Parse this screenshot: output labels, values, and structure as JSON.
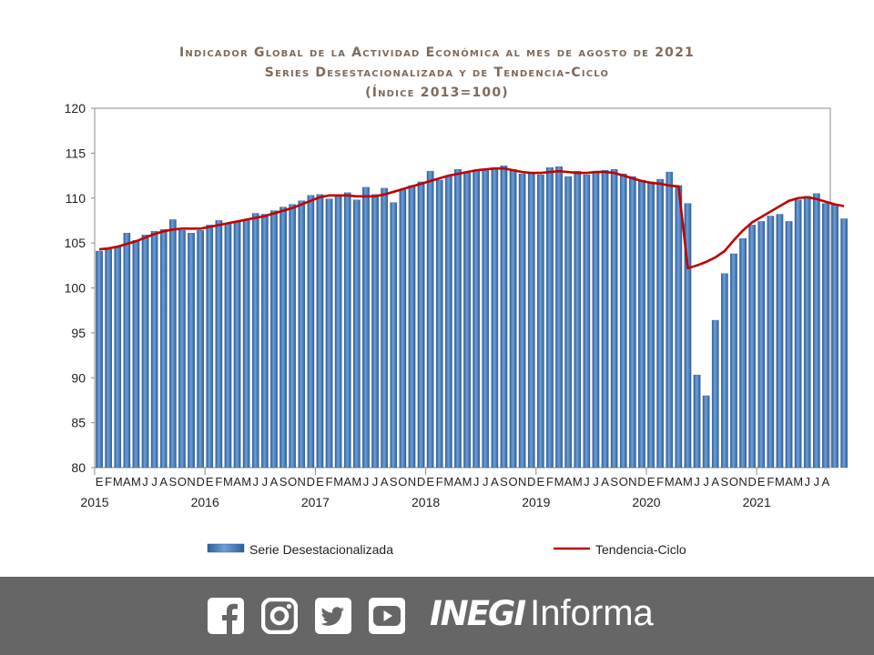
{
  "title": {
    "line1": "Indicador Global de la Actividad Económica al mes de agosto de 2021",
    "line2": "Series Desestacionalizada y de Tendencia-Ciclo",
    "line3": "(Índice 2013=100)"
  },
  "colors": {
    "bar": "#4f81bd",
    "bar_edge": "#2f5f98",
    "trend": "#c00000",
    "title": "#7f6a5a",
    "footer": "#666666"
  },
  "chart_data": {
    "type": "bar",
    "ylim": [
      80,
      120
    ],
    "yticks": [
      80,
      85,
      90,
      95,
      100,
      105,
      110,
      115,
      120
    ],
    "month_labels": [
      "E",
      "F",
      "M",
      "A",
      "M",
      "J",
      "J",
      "A",
      "S",
      "O",
      "N",
      "D",
      "E",
      "F",
      "M",
      "A",
      "M",
      "J",
      "J",
      "A",
      "S",
      "O",
      "N",
      "D",
      "E",
      "F",
      "M",
      "A",
      "M",
      "J",
      "J",
      "A",
      "S",
      "O",
      "N",
      "D",
      "E",
      "F",
      "M",
      "A",
      "M",
      "J",
      "J",
      "A",
      "S",
      "O",
      "N",
      "D",
      "E",
      "F",
      "M",
      "A",
      "M",
      "J",
      "J",
      "A",
      "S",
      "O",
      "N",
      "D",
      "E",
      "F",
      "M",
      "A",
      "M",
      "J",
      "J",
      "A",
      "S",
      "O",
      "N",
      "D",
      "E",
      "F",
      "M",
      "A",
      "M",
      "J",
      "J",
      "A"
    ],
    "years": [
      {
        "label": "2015",
        "start_index": 0
      },
      {
        "label": "2016",
        "start_index": 12
      },
      {
        "label": "2017",
        "start_index": 24
      },
      {
        "label": "2018",
        "start_index": 36
      },
      {
        "label": "2019",
        "start_index": 48
      },
      {
        "label": "2020",
        "start_index": 60
      },
      {
        "label": "2021",
        "start_index": 72
      }
    ],
    "series": [
      {
        "name": "Serie Desestacionalizada",
        "kind": "bar",
        "values": [
          104.1,
          104.3,
          104.6,
          106.1,
          105.3,
          105.9,
          106.3,
          106.5,
          107.6,
          106.4,
          106.1,
          106.4,
          107.0,
          107.5,
          107.2,
          107.4,
          107.6,
          108.3,
          108.2,
          108.6,
          109.0,
          109.3,
          109.7,
          110.3,
          110.4,
          109.9,
          110.4,
          110.6,
          109.8,
          111.2,
          110.4,
          111.1,
          109.5,
          110.9,
          111.4,
          111.8,
          113.0,
          112.0,
          112.4,
          113.2,
          112.8,
          113.0,
          113.2,
          113.4,
          113.6,
          113.2,
          112.7,
          112.8,
          112.6,
          113.4,
          113.5,
          112.4,
          113.0,
          112.6,
          113.0,
          113.1,
          113.2,
          112.7,
          112.4,
          112.0,
          111.8,
          112.1,
          112.9,
          111.4,
          109.4,
          90.3,
          88.0,
          96.4,
          101.6,
          103.8,
          105.5,
          107.0,
          107.4,
          108.0,
          108.2,
          107.4,
          109.8,
          110.2,
          110.5,
          109.4,
          109.3,
          107.7
        ]
      },
      {
        "name": "Tendencia-Ciclo",
        "kind": "line",
        "values": [
          104.3,
          104.4,
          104.6,
          104.9,
          105.2,
          105.6,
          106.0,
          106.3,
          106.5,
          106.6,
          106.6,
          106.6,
          106.8,
          107.0,
          107.2,
          107.4,
          107.6,
          107.8,
          108.0,
          108.3,
          108.6,
          108.9,
          109.3,
          109.7,
          110.1,
          110.3,
          110.3,
          110.3,
          110.2,
          110.2,
          110.2,
          110.4,
          110.7,
          111.0,
          111.3,
          111.6,
          111.9,
          112.2,
          112.5,
          112.7,
          112.9,
          113.1,
          113.2,
          113.3,
          113.3,
          113.1,
          112.9,
          112.8,
          112.8,
          112.9,
          113.0,
          112.9,
          112.8,
          112.8,
          112.9,
          112.9,
          112.8,
          112.5,
          112.2,
          111.9,
          111.7,
          111.6,
          111.4,
          111.3,
          102.2,
          102.5,
          102.9,
          103.4,
          104.1,
          105.3,
          106.4,
          107.3,
          107.9,
          108.5,
          109.1,
          109.7,
          110.0,
          110.1,
          109.9,
          109.6,
          109.3,
          109.1
        ]
      }
    ],
    "legend": [
      "Serie Desestacionalizada",
      "Tendencia-Ciclo"
    ],
    "legend_placement": "bottom"
  },
  "footer": {
    "social_icons": [
      "facebook-icon",
      "instagram-icon",
      "twitter-icon",
      "youtube-icon"
    ],
    "brand_strong": "INEGI",
    "brand_light": "Informa"
  }
}
